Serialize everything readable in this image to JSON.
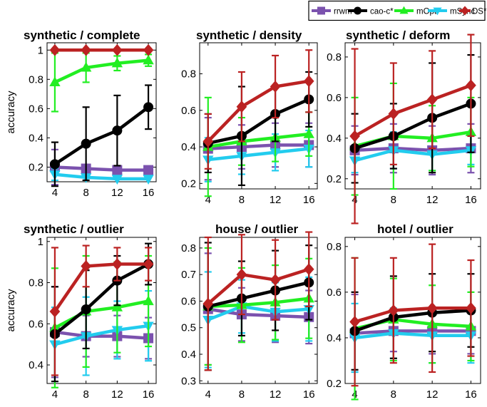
{
  "legend": {
    "entries": [
      {
        "name": "rrwm",
        "color": "#7b52ae",
        "marker": "square"
      },
      {
        "name": "cao-c*",
        "color": "#000000",
        "marker": "circle"
      },
      {
        "name": "mOpt",
        "color": "#22ee22",
        "marker": "triangle-up"
      },
      {
        "name": "mSync",
        "color": "#22ccee",
        "marker": "triangle-down"
      },
      {
        "name": "DS*",
        "color": "#bb2222",
        "marker": "diamond"
      }
    ]
  },
  "chart_data": [
    {
      "type": "line",
      "title": "synthetic / complete",
      "ylabel": "accuracy",
      "x": [
        4,
        8,
        12,
        16
      ],
      "xlim": [
        3,
        17
      ],
      "ylim": [
        0.1,
        1.05
      ],
      "yticks": [
        0.2,
        0.4,
        0.6,
        0.8,
        1
      ],
      "ytick_labels": [
        "0.2",
        "0.4",
        "0.6",
        "0.8",
        "1"
      ],
      "series": [
        {
          "name": "rrwm",
          "values": [
            0.2,
            0.19,
            0.18,
            0.18
          ],
          "err": [
            0.12,
            0.0,
            0.0,
            0.0
          ]
        },
        {
          "name": "mSync",
          "values": [
            0.15,
            0.13,
            0.12,
            0.12
          ],
          "err": [
            0.04,
            0.0,
            0.0,
            0.0
          ]
        },
        {
          "name": "mOpt",
          "values": [
            0.78,
            0.88,
            0.91,
            0.93
          ],
          "err": [
            0.2,
            0.1,
            0.05,
            0.04
          ]
        },
        {
          "name": "cao-c*",
          "values": [
            0.22,
            0.36,
            0.45,
            0.61
          ],
          "err": [
            0.15,
            0.25,
            0.24,
            0.15
          ]
        },
        {
          "name": "DS*",
          "values": [
            1.0,
            1.0,
            1.0,
            1.0
          ],
          "err": [
            0.0,
            0.0,
            0.0,
            0.0
          ]
        }
      ]
    },
    {
      "type": "line",
      "title": "synthetic / density",
      "ylabel": "",
      "x": [
        4,
        8,
        12,
        16
      ],
      "xlim": [
        3,
        17
      ],
      "ylim": [
        0.17,
        0.97
      ],
      "yticks": [
        0.2,
        0.4,
        0.6,
        0.8
      ],
      "ytick_labels": [
        "0.2",
        "0.4",
        "0.6",
        "0.8"
      ],
      "series": [
        {
          "name": "rrwm",
          "values": [
            0.39,
            0.4,
            0.41,
            0.41
          ],
          "err": [
            0.17,
            0.12,
            0.12,
            0.12
          ]
        },
        {
          "name": "mSync",
          "values": [
            0.33,
            0.35,
            0.37,
            0.39
          ],
          "err": [
            0.12,
            0.1,
            0.1,
            0.1
          ]
        },
        {
          "name": "mOpt",
          "values": [
            0.4,
            0.43,
            0.45,
            0.47
          ],
          "err": [
            0.27,
            0.13,
            0.13,
            0.12
          ]
        },
        {
          "name": "cao-c*",
          "values": [
            0.42,
            0.46,
            0.58,
            0.66
          ],
          "err": [
            0.16,
            0.27,
            0.15,
            0.15
          ]
        },
        {
          "name": "DS*",
          "values": [
            0.43,
            0.62,
            0.73,
            0.76
          ],
          "err": [
            0.15,
            0.19,
            0.17,
            0.17
          ]
        }
      ]
    },
    {
      "type": "line",
      "title": "synthetic / deform",
      "ylabel": "",
      "x": [
        4,
        8,
        12,
        16
      ],
      "xlim": [
        3,
        17
      ],
      "ylim": [
        0.15,
        0.87
      ],
      "yticks": [
        0.2,
        0.4,
        0.6,
        0.8
      ],
      "ytick_labels": [
        "0.2",
        "0.4",
        "0.6",
        "0.8"
      ],
      "series": [
        {
          "name": "rrwm",
          "values": [
            0.34,
            0.35,
            0.34,
            0.35
          ],
          "err": [
            0.12,
            0.12,
            0.12,
            0.12
          ]
        },
        {
          "name": "mSync",
          "values": [
            0.29,
            0.34,
            0.32,
            0.34
          ],
          "err": [
            0.06,
            0.09,
            0.08,
            0.07
          ]
        },
        {
          "name": "mOpt",
          "values": [
            0.36,
            0.41,
            0.4,
            0.43
          ],
          "err": [
            0.24,
            0.26,
            0.16,
            0.17
          ]
        },
        {
          "name": "cao-c*",
          "values": [
            0.35,
            0.41,
            0.5,
            0.57
          ],
          "err": [
            0.17,
            0.16,
            0.27,
            0.24
          ]
        },
        {
          "name": "DS*",
          "values": [
            0.41,
            0.52,
            0.59,
            0.66
          ],
          "err": [
            0.43,
            0.25,
            0.24,
            0.25
          ]
        }
      ]
    },
    {
      "type": "line",
      "title": "synthetic / outlier",
      "ylabel": "accuracy",
      "x": [
        4,
        8,
        12,
        16
      ],
      "xlim": [
        3,
        17
      ],
      "ylim": [
        0.31,
        1.02
      ],
      "yticks": [
        0.4,
        0.6,
        0.8,
        1
      ],
      "ytick_labels": [
        "0.4",
        "0.6",
        "0.8",
        "1"
      ],
      "series": [
        {
          "name": "rrwm",
          "values": [
            0.56,
            0.54,
            0.54,
            0.53
          ],
          "err": [
            0.22,
            0.1,
            0.1,
            0.1
          ]
        },
        {
          "name": "mSync",
          "values": [
            0.5,
            0.54,
            0.57,
            0.59
          ],
          "err": [
            0.18,
            0.19,
            0.14,
            0.17
          ]
        },
        {
          "name": "mOpt",
          "values": [
            0.58,
            0.66,
            0.68,
            0.71
          ],
          "err": [
            0.29,
            0.27,
            0.22,
            0.22
          ]
        },
        {
          "name": "cao-c*",
          "values": [
            0.55,
            0.67,
            0.81,
            0.89
          ],
          "err": [
            0.23,
            0.19,
            0.12,
            0.1
          ]
        },
        {
          "name": "DS*",
          "values": [
            0.66,
            0.88,
            0.89,
            0.89
          ],
          "err": [
            0.31,
            0.1,
            0.08,
            0.08
          ]
        }
      ]
    },
    {
      "type": "line",
      "title": "house / outlier",
      "ylabel": "",
      "x": [
        4,
        8,
        12,
        16
      ],
      "xlim": [
        3,
        17
      ],
      "ylim": [
        0.29,
        0.84
      ],
      "yticks": [
        0.3,
        0.4,
        0.5,
        0.6,
        0.7,
        0.8
      ],
      "ytick_labels": [
        "0.3",
        "0.4",
        "0.5",
        "0.6",
        "0.7",
        "0.8"
      ],
      "series": [
        {
          "name": "rrwm",
          "values": [
            0.57,
            0.55,
            0.545,
            0.54
          ],
          "err": [
            0.21,
            0.1,
            0.1,
            0.1
          ]
        },
        {
          "name": "mSync",
          "values": [
            0.53,
            0.58,
            0.56,
            0.57
          ],
          "err": [
            0.18,
            0.1,
            0.11,
            0.12
          ]
        },
        {
          "name": "mOpt",
          "values": [
            0.58,
            0.585,
            0.595,
            0.61
          ],
          "err": [
            0.22,
            0.14,
            0.14,
            0.15
          ]
        },
        {
          "name": "cao-c*",
          "values": [
            0.58,
            0.61,
            0.64,
            0.67
          ],
          "err": [
            0.24,
            0.14,
            0.15,
            0.14
          ]
        },
        {
          "name": "DS*",
          "values": [
            0.59,
            0.7,
            0.68,
            0.72
          ],
          "err": [
            0.25,
            0.15,
            0.15,
            0.14
          ]
        }
      ]
    },
    {
      "type": "line",
      "title": "hotel / outlier",
      "ylabel": "",
      "x": [
        4,
        8,
        12,
        16
      ],
      "xlim": [
        3,
        17
      ],
      "ylim": [
        0.2,
        0.84
      ],
      "yticks": [
        0.2,
        0.4,
        0.6,
        0.8
      ],
      "ytick_labels": [
        "0.2",
        "0.4",
        "0.6",
        "0.8"
      ],
      "series": [
        {
          "name": "rrwm",
          "values": [
            0.42,
            0.43,
            0.43,
            0.43
          ],
          "err": [
            0.17,
            0.09,
            0.1,
            0.1
          ]
        },
        {
          "name": "mSync",
          "values": [
            0.4,
            0.42,
            0.41,
            0.41
          ],
          "err": [
            0.15,
            0.11,
            0.12,
            0.12
          ]
        },
        {
          "name": "mOpt",
          "values": [
            0.44,
            0.48,
            0.46,
            0.45
          ],
          "err": [
            0.31,
            0.18,
            0.17,
            0.15
          ]
        },
        {
          "name": "cao-c*",
          "values": [
            0.43,
            0.49,
            0.51,
            0.52
          ],
          "err": [
            0.17,
            0.18,
            0.17,
            0.16
          ]
        },
        {
          "name": "DS*",
          "values": [
            0.47,
            0.52,
            0.53,
            0.53
          ],
          "err": [
            0.28,
            0.23,
            0.28,
            0.21
          ]
        }
      ]
    }
  ]
}
